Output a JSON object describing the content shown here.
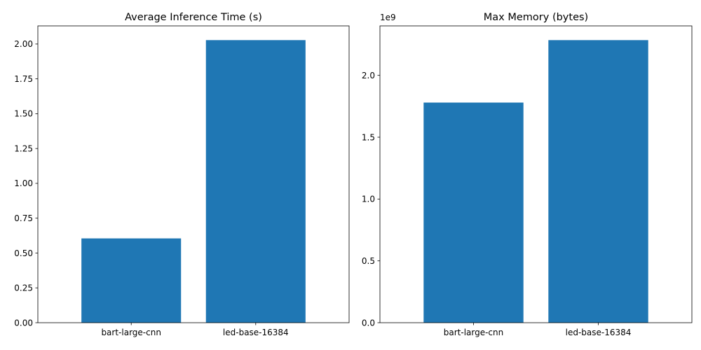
{
  "chart_data": [
    {
      "type": "bar",
      "title": "Average Inference Time (s)",
      "xlabel": "",
      "ylabel": "",
      "categories": [
        "bart-large-cnn",
        "led-base-16384"
      ],
      "values": [
        0.605,
        2.028
      ],
      "ylim": [
        0,
        2.13
      ],
      "yticks": [
        0.0,
        0.25,
        0.5,
        0.75,
        1.0,
        1.25,
        1.5,
        1.75,
        2.0
      ],
      "ytick_labels": [
        "0.00",
        "0.25",
        "0.50",
        "0.75",
        "1.00",
        "1.25",
        "1.50",
        "1.75",
        "2.00"
      ],
      "offset_label": "",
      "bar_color": "#1f77b4",
      "grid": false,
      "legend": "none"
    },
    {
      "type": "bar",
      "title": "Max Memory (bytes)",
      "xlabel": "",
      "ylabel": "",
      "categories": [
        "bart-large-cnn",
        "led-base-16384"
      ],
      "values": [
        1780000000,
        2285000000
      ],
      "ylim": [
        0,
        2400000000
      ],
      "yticks": [
        0,
        500000000,
        1000000000,
        1500000000,
        2000000000
      ],
      "ytick_labels": [
        "0.0",
        "0.5",
        "1.0",
        "1.5",
        "2.0"
      ],
      "offset_label": "1e9",
      "bar_color": "#1f77b4",
      "grid": false,
      "legend": "none"
    }
  ]
}
